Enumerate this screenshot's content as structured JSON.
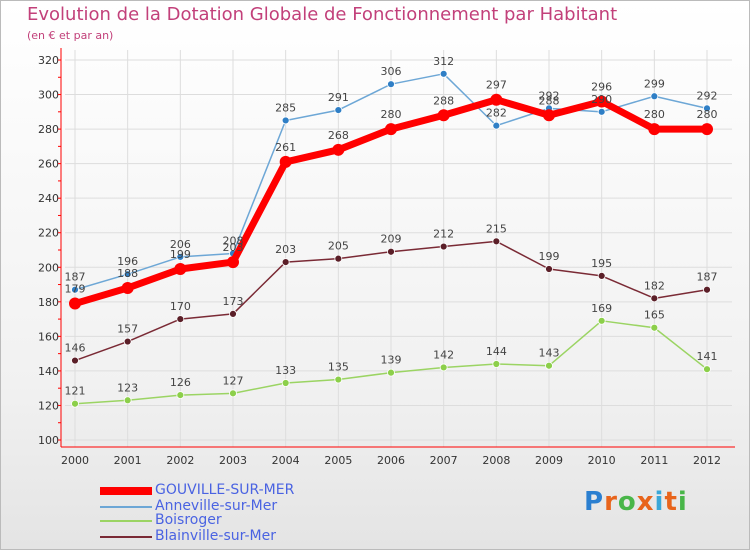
{
  "title": "Evolution de la Dotation Globale de Fonctionnement par Habitant",
  "subtitle": "(en € et par an)",
  "brand": "Proxiti",
  "colors": {
    "title": "#c2407a",
    "legend_text": "#4a63e2",
    "axis": "#ff0000",
    "grid": "#dddddd"
  },
  "chart_data": {
    "type": "line",
    "x": [
      "2000",
      "2001",
      "2002",
      "2003",
      "2004",
      "2005",
      "2006",
      "2007",
      "2008",
      "2009",
      "2010",
      "2011",
      "2012"
    ],
    "ylim": [
      100,
      320
    ],
    "yticks": [
      100,
      120,
      140,
      160,
      180,
      200,
      220,
      240,
      260,
      280,
      300,
      320
    ],
    "grid": true,
    "legend_position": "bottom-left",
    "series": [
      {
        "name": "GOUVILLE-SUR-MER",
        "values": [
          179,
          188,
          199,
          203,
          261,
          268,
          280,
          288,
          297,
          288,
          296,
          280,
          280
        ],
        "color": "#ff0000",
        "marker_color": "#ff0000",
        "width": 7
      },
      {
        "name": "Anneville-sur-Mer",
        "values": [
          187,
          196,
          206,
          208,
          285,
          291,
          306,
          312,
          282,
          292,
          290,
          299,
          292
        ],
        "color": "#6da7d6",
        "marker_color": "#2f7fc6",
        "width": 1.5
      },
      {
        "name": "Boisroger",
        "values": [
          121,
          123,
          126,
          127,
          133,
          135,
          139,
          142,
          144,
          143,
          169,
          165,
          141
        ],
        "color": "#9bd463",
        "marker_color": "#8ccf4a",
        "width": 1.5
      },
      {
        "name": "Blainville-sur-Mer",
        "values": [
          146,
          157,
          170,
          173,
          203,
          205,
          209,
          212,
          215,
          199,
          195,
          182,
          187
        ],
        "color": "#7a2a35",
        "marker_color": "#5b1f28",
        "width": 1.5
      }
    ]
  }
}
